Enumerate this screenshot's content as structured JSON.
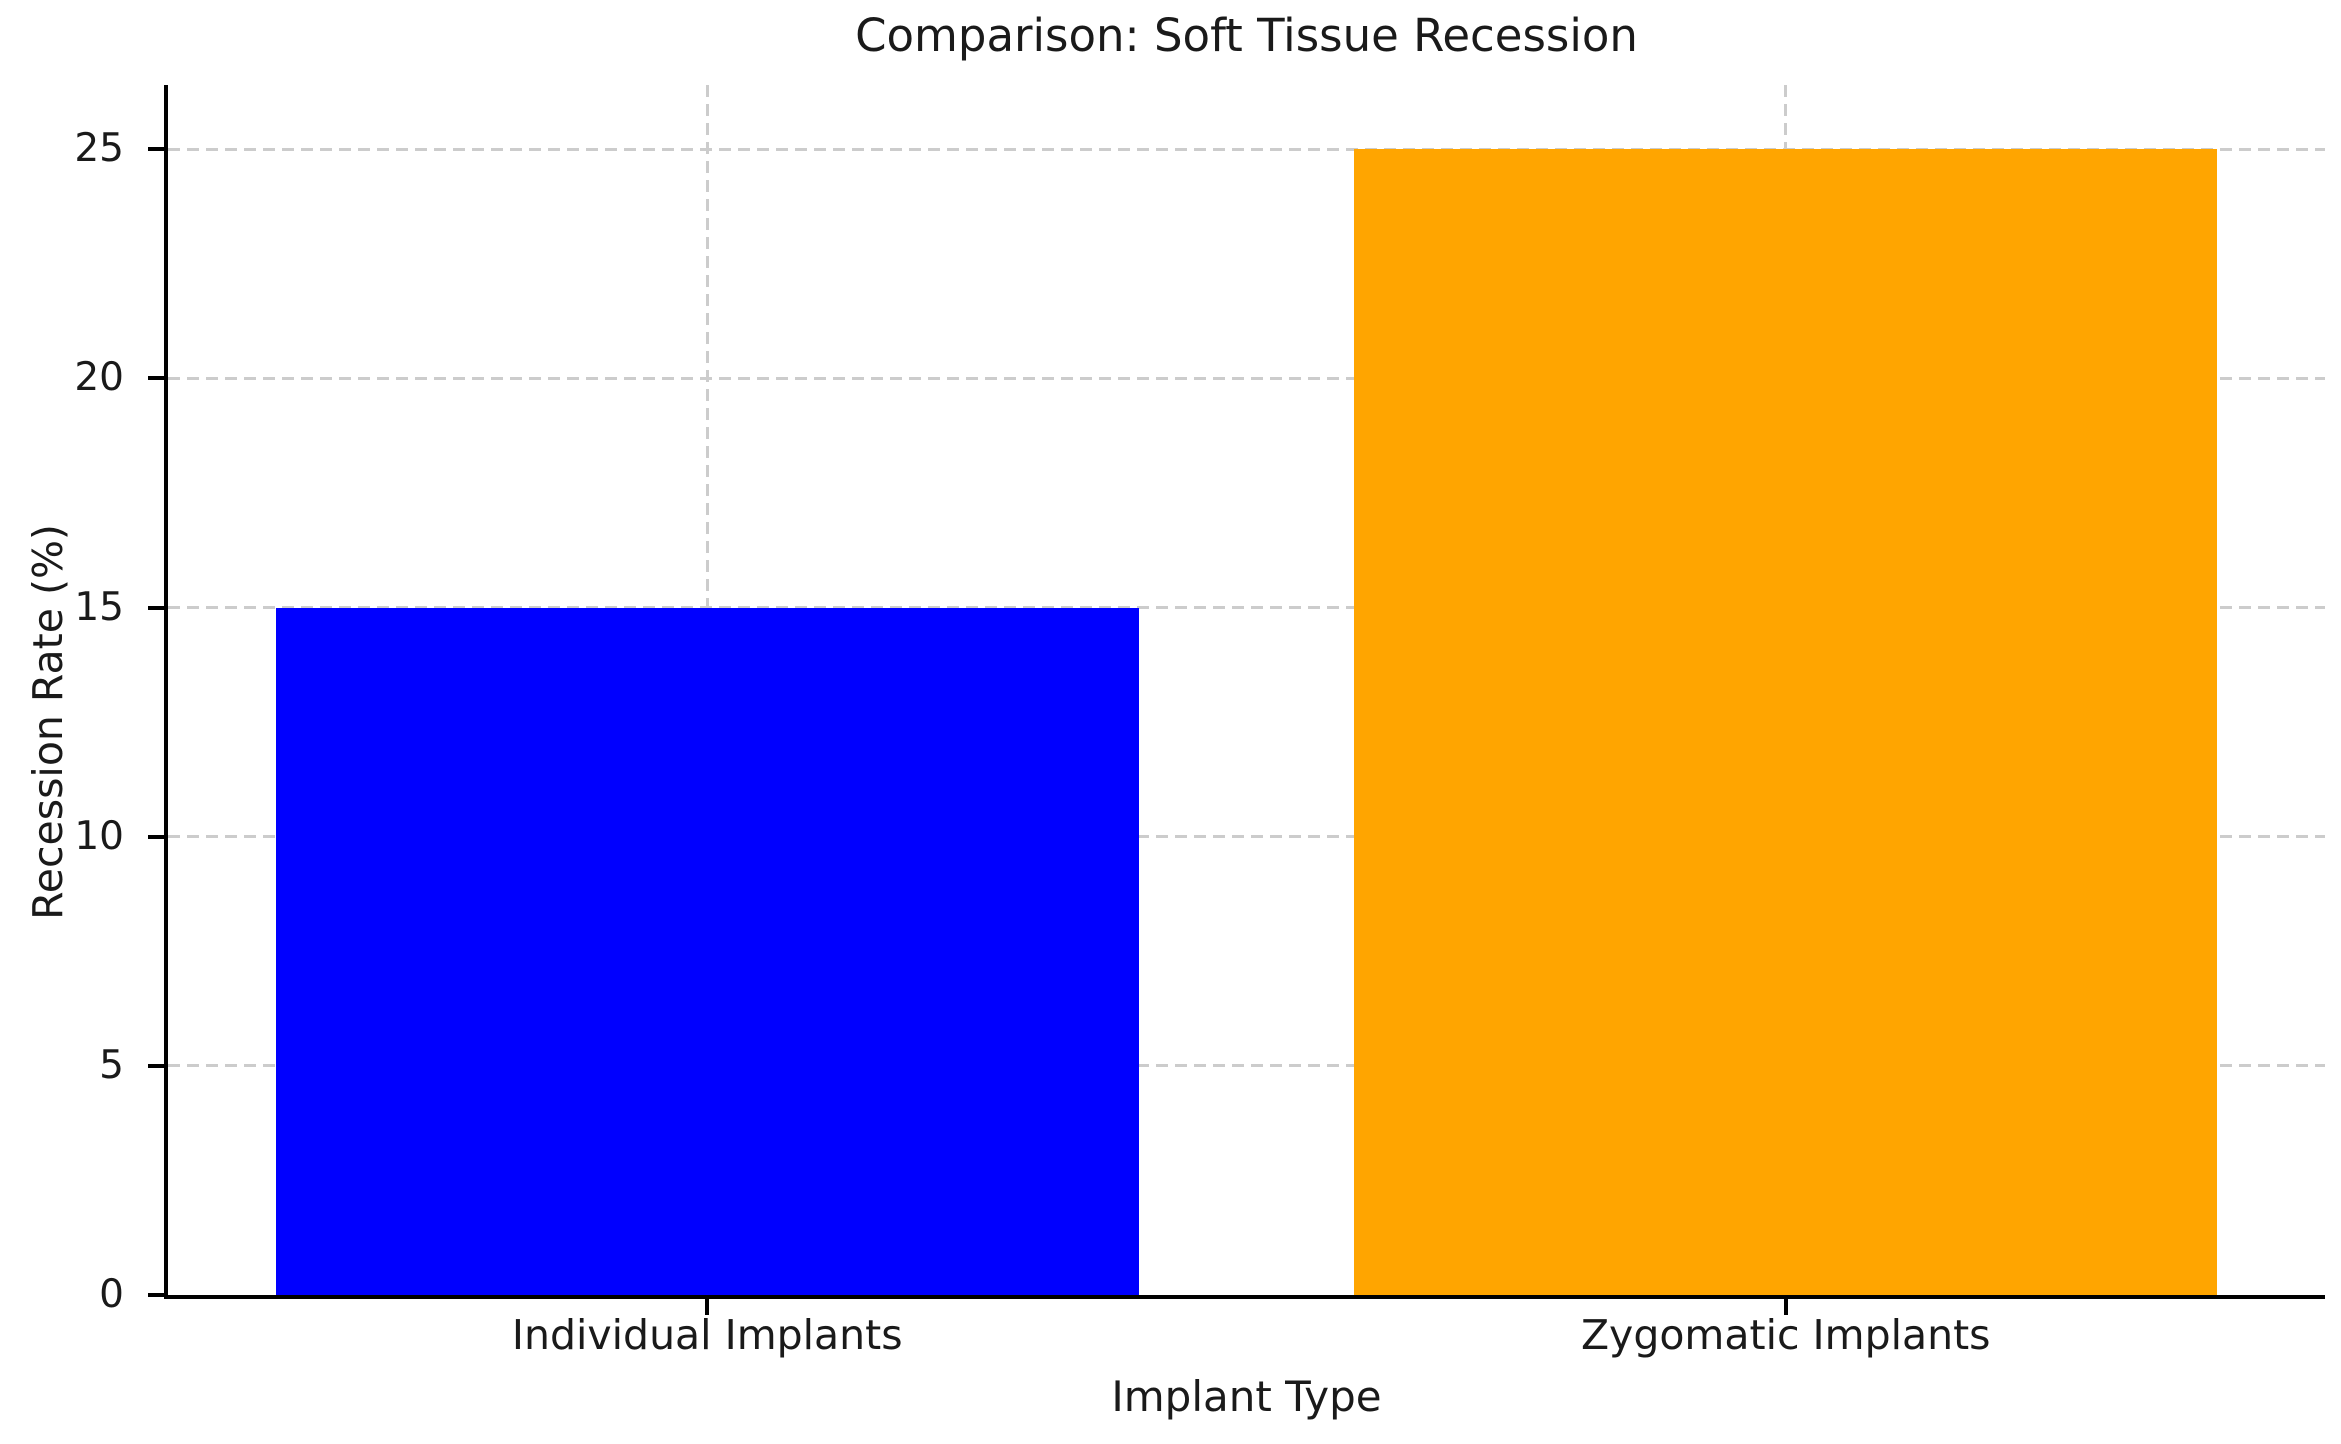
{
  "chart_data": {
    "type": "bar",
    "title": "Comparison: Soft Tissue Recession",
    "xlabel": "Implant Type",
    "ylabel": "Recession Rate (%)",
    "categories": [
      "Individual Implants",
      "Zygomatic Implants"
    ],
    "values": [
      15,
      25
    ],
    "bar_colors": [
      "#0000ff",
      "#ffa500"
    ],
    "yticks": [
      0,
      5,
      10,
      15,
      20,
      25
    ],
    "ylim": [
      0,
      26.4
    ],
    "bar_width_fraction": 0.8,
    "grid": "both-dashed",
    "grid_color": "#cccccc",
    "axis_color": "#000000",
    "background": "#ffffff",
    "legend": "none"
  }
}
